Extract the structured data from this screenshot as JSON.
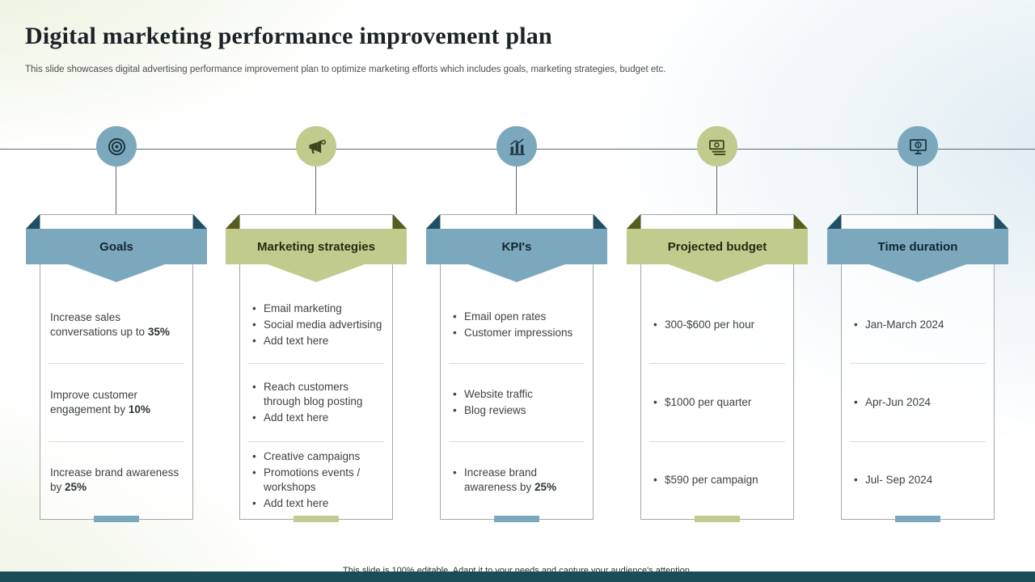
{
  "slide": {
    "title": "Digital marketing performance improvement plan",
    "subtitle": "This slide showcases digital advertising performance improvement plan to optimize marketing efforts which includes goals, marketing strategies, budget etc.",
    "footer": "This slide is 100% editable. Adapt it to your needs and capture your audience's attention."
  },
  "colors": {
    "blue": "#7ca8bd",
    "green": "#c1cb8e",
    "blue_fold": "#1e4f63",
    "green_fold": "#585c1d",
    "bottom_bar": "#1b4d59"
  },
  "columns": [
    {
      "id": "goals",
      "header": "Goals",
      "theme": "blue",
      "icon": "target-icon",
      "bullets": false,
      "sections": [
        {
          "items": [
            {
              "text": "Increase sales conversations up to ",
              "bold": "35%"
            }
          ]
        },
        {
          "items": [
            {
              "text": "Improve customer engagement by ",
              "bold": "10%"
            }
          ]
        },
        {
          "items": [
            {
              "text": "Increase brand awareness by ",
              "bold": "25%"
            }
          ]
        }
      ]
    },
    {
      "id": "marketing-strategies",
      "header": "Marketing strategies",
      "theme": "green",
      "icon": "megaphone-icon",
      "bullets": true,
      "sections": [
        {
          "items": [
            "Email marketing",
            "Social media advertising",
            "Add text here"
          ]
        },
        {
          "items": [
            "Reach customers through blog posting",
            "Add text here"
          ]
        },
        {
          "items": [
            "Creative campaigns",
            "Promotions events / workshops",
            "Add text here"
          ]
        }
      ]
    },
    {
      "id": "kpis",
      "header": "KPI's",
      "theme": "blue",
      "icon": "bar-chart-icon",
      "bullets": true,
      "sections": [
        {
          "items": [
            "Email open rates",
            "Customer impressions"
          ]
        },
        {
          "items": [
            "Website traffic",
            "Blog reviews"
          ]
        },
        {
          "items": [
            {
              "text": "Increase brand awareness by ",
              "bold": "25%"
            }
          ]
        }
      ]
    },
    {
      "id": "projected-budget",
      "header": "Projected budget",
      "theme": "green",
      "icon": "money-icon",
      "bullets": true,
      "sections": [
        {
          "items": [
            "300-$600 per hour"
          ]
        },
        {
          "items": [
            "$1000 per quarter"
          ]
        },
        {
          "items": [
            "$590 per campaign"
          ]
        }
      ]
    },
    {
      "id": "time-duration",
      "header": "Time duration",
      "theme": "blue",
      "icon": "screen-payment-icon",
      "bullets": true,
      "sections": [
        {
          "items": [
            "Jan-March 2024"
          ]
        },
        {
          "items": [
            "Apr-Jun 2024"
          ]
        },
        {
          "items": [
            "Jul- Sep 2024"
          ]
        }
      ]
    }
  ]
}
